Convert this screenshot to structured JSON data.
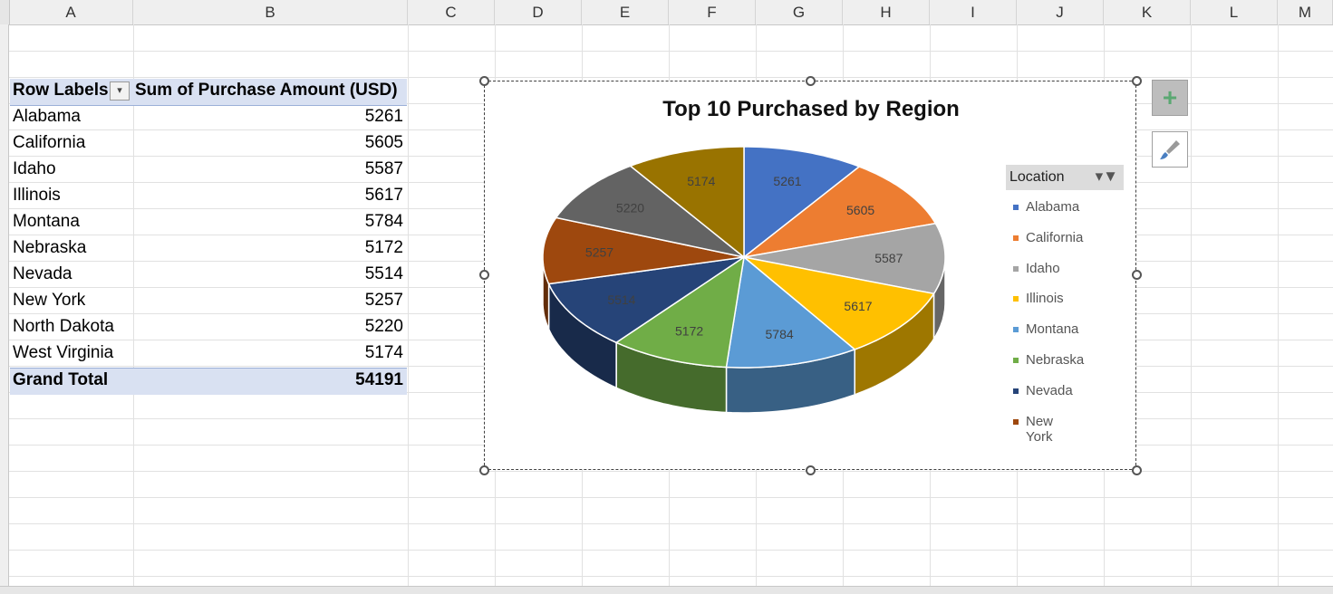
{
  "sheet": {
    "columns": [
      "A",
      "B",
      "C",
      "D",
      "E",
      "F",
      "G",
      "H",
      "I",
      "J",
      "K",
      "L",
      "M"
    ]
  },
  "pivot": {
    "header_row_labels": "Row Labels",
    "header_value": "Sum of Purchase Amount (USD)",
    "filter_icon": "filter-dropdown-icon",
    "rows": [
      {
        "label": "Alabama",
        "value": "5261"
      },
      {
        "label": "California",
        "value": "5605"
      },
      {
        "label": "Idaho",
        "value": "5587"
      },
      {
        "label": "Illinois",
        "value": "5617"
      },
      {
        "label": "Montana",
        "value": "5784"
      },
      {
        "label": "Nebraska",
        "value": "5172"
      },
      {
        "label": "Nevada",
        "value": "5514"
      },
      {
        "label": "New York",
        "value": "5257"
      },
      {
        "label": "North Dakota",
        "value": "5220"
      },
      {
        "label": "West Virginia",
        "value": "5174"
      }
    ],
    "total_label": "Grand Total",
    "total_value": "54191"
  },
  "chart": {
    "legend_title": "Location",
    "legend_filter_icon": "filter-icon",
    "legend_items": [
      "Alabama",
      "California",
      "Idaho",
      "Illinois",
      "Montana",
      "Nebraska",
      "Nevada",
      "New York"
    ],
    "side_buttons": [
      "chart-elements-plus-icon",
      "chart-styles-brush-icon"
    ]
  },
  "chart_data": {
    "type": "pie",
    "title": "Top 10 Purchased by Region",
    "categories": [
      "Alabama",
      "California",
      "Idaho",
      "Illinois",
      "Montana",
      "Nebraska",
      "Nevada",
      "New York",
      "North Dakota",
      "West Virginia"
    ],
    "values": [
      5261,
      5605,
      5587,
      5617,
      5784,
      5172,
      5514,
      5257,
      5220,
      5174
    ],
    "colors": [
      "#4472c4",
      "#ed7d31",
      "#a5a5a5",
      "#ffc000",
      "#5b9bd5",
      "#70ad47",
      "#264478",
      "#9e480e",
      "#636363",
      "#997300"
    ],
    "data_labels": true,
    "legend_position": "right",
    "style": "3d"
  }
}
